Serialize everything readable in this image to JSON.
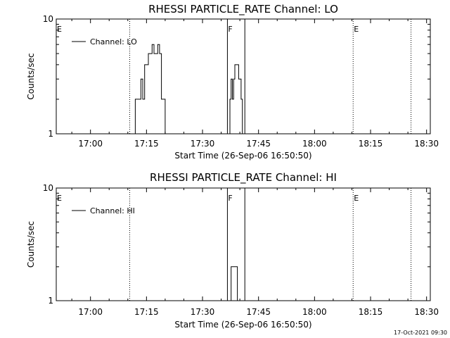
{
  "chart_data": [
    {
      "type": "line",
      "title": "RHESSI PARTICLE_RATE Channel: LO",
      "xlabel": "Start Time (26-Sep-06 16:50:50)",
      "ylabel": "Counts/sec",
      "xlim": [
        "16:50:50",
        "18:31:00"
      ],
      "ylim": [
        1,
        10
      ],
      "yscale": "log",
      "x_ticks": [
        "17:00",
        "17:15",
        "17:30",
        "17:45",
        "18:00",
        "18:15",
        "18:30"
      ],
      "y_ticks": [
        "1",
        "10"
      ],
      "grid": false,
      "legend": {
        "position": "top-left",
        "entries": [
          "Channel: LO"
        ]
      },
      "series": [
        {
          "name": "Channel: LO",
          "x": [
            "17:11",
            "17:11:30",
            "17:12",
            "17:12:30",
            "17:13",
            "17:13:30",
            "17:14",
            "17:14:30",
            "17:15",
            "17:15:30",
            "17:16",
            "17:16:30",
            "17:17",
            "17:17:30",
            "17:18",
            "17:18:30",
            "17:19",
            "17:19:30",
            "17:20",
            "17:20:30",
            "17:21",
            "17:37",
            "17:37:20",
            "17:37:40",
            "17:38",
            "17:38:20",
            "17:38:40",
            "17:39",
            "17:39:20",
            "17:39:40",
            "17:40",
            "17:40:20",
            "17:40:40"
          ],
          "y": [
            1,
            1,
            2,
            2,
            2,
            3,
            2,
            4,
            4,
            5,
            5,
            6,
            5,
            5,
            6,
            5,
            2,
            2,
            1,
            1,
            1,
            1,
            2,
            3,
            2,
            3,
            4,
            4,
            4,
            3,
            3,
            2,
            1
          ]
        }
      ],
      "annotations": [
        {
          "label": "E",
          "at": "16:50:50",
          "style": "dotted"
        },
        {
          "label": "",
          "at": "17:10:30",
          "style": "dotted"
        },
        {
          "label": "F",
          "at": "17:36:40",
          "style": "solid"
        },
        {
          "label": "",
          "at": "17:41:20",
          "style": "solid"
        },
        {
          "label": "E",
          "at": "18:10:20",
          "style": "dotted"
        },
        {
          "label": "",
          "at": "18:25:50",
          "style": "dotted"
        }
      ]
    },
    {
      "type": "line",
      "title": "RHESSI PARTICLE_RATE Channel: HI",
      "xlabel": "Start Time (26-Sep-06 16:50:50)",
      "ylabel": "Counts/sec",
      "xlim": [
        "16:50:50",
        "18:31:00"
      ],
      "ylim": [
        1,
        10
      ],
      "yscale": "log",
      "x_ticks": [
        "17:00",
        "17:15",
        "17:30",
        "17:45",
        "18:00",
        "18:15",
        "18:30"
      ],
      "y_ticks": [
        "1",
        "10"
      ],
      "grid": false,
      "legend": {
        "position": "top-left",
        "entries": [
          "Channel: HI"
        ]
      },
      "series": [
        {
          "name": "Channel: HI",
          "x": [
            "17:37",
            "17:37:20",
            "17:37:40",
            "17:38",
            "17:38:20",
            "17:38:40",
            "17:39",
            "17:39:20",
            "17:39:40",
            "17:40"
          ],
          "y": [
            1,
            1,
            2,
            2,
            2,
            2,
            2,
            1,
            1,
            1
          ]
        }
      ],
      "annotations": [
        {
          "label": "E",
          "at": "16:50:50",
          "style": "dotted"
        },
        {
          "label": "",
          "at": "17:10:30",
          "style": "dotted"
        },
        {
          "label": "F",
          "at": "17:36:40",
          "style": "solid"
        },
        {
          "label": "",
          "at": "17:41:20",
          "style": "solid"
        },
        {
          "label": "E",
          "at": "18:10:20",
          "style": "dotted"
        },
        {
          "label": "",
          "at": "18:25:50",
          "style": "dotted"
        }
      ]
    }
  ],
  "footer": {
    "timestamp": "17-Oct-2021 09:30"
  }
}
